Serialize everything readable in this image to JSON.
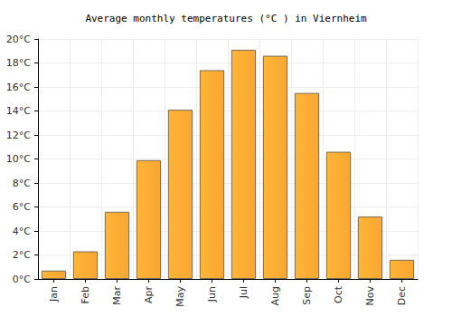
{
  "chart_data": {
    "type": "bar",
    "title": "Average monthly temperatures (°C ) in Viernheim",
    "categories": [
      "Jan",
      "Feb",
      "Mar",
      "Apr",
      "May",
      "Jun",
      "Jul",
      "Aug",
      "Sep",
      "Oct",
      "Nov",
      "Dec"
    ],
    "values": [
      0.7,
      2.3,
      5.6,
      9.9,
      14.1,
      17.4,
      19.1,
      18.6,
      15.5,
      10.6,
      5.2,
      1.6
    ],
    "color": "#f9a632",
    "ylim": [
      0,
      20
    ],
    "yticks": [
      {
        "value": 0,
        "label": "0°C"
      },
      {
        "value": 2,
        "label": "2°C"
      },
      {
        "value": 4,
        "label": "4°C"
      },
      {
        "value": 6,
        "label": "6°C"
      },
      {
        "value": 8,
        "label": "8°C"
      },
      {
        "value": 10,
        "label": "10°C"
      },
      {
        "value": 12,
        "label": "12°C"
      },
      {
        "value": 14,
        "label": "14°C"
      },
      {
        "value": 16,
        "label": "16°C"
      },
      {
        "value": 18,
        "label": "18°C"
      },
      {
        "value": 20,
        "label": "20°C"
      }
    ],
    "grid": true
  }
}
